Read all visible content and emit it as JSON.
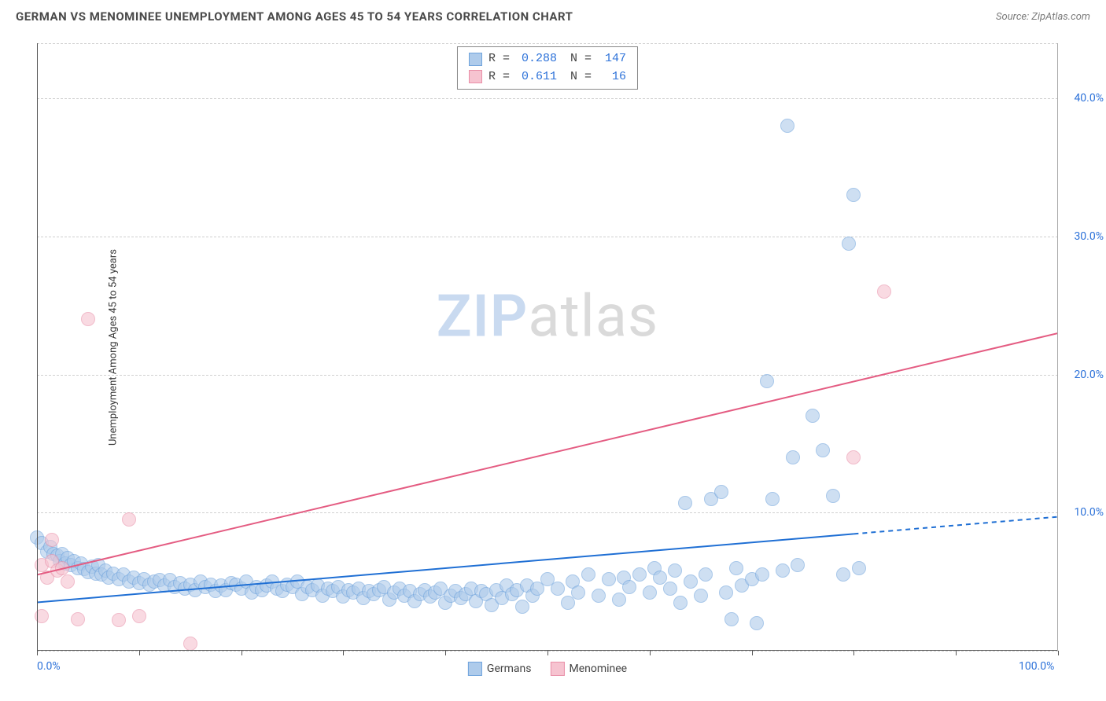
{
  "header": {
    "title": "GERMAN VS MENOMINEE UNEMPLOYMENT AMONG AGES 45 TO 54 YEARS CORRELATION CHART",
    "source": "Source: ZipAtlas.com"
  },
  "chart": {
    "type": "scatter",
    "y_axis_label": "Unemployment Among Ages 45 to 54 years",
    "xlim": [
      0,
      100
    ],
    "ylim": [
      0,
      44
    ],
    "x_ticks": [
      0,
      10,
      20,
      30,
      40,
      50,
      60,
      70,
      80,
      90,
      100
    ],
    "x_tick_labels_shown": {
      "0": "0.0%",
      "100": "100.0%"
    },
    "y_ticks": [
      10,
      20,
      30,
      40
    ],
    "y_tick_labels": {
      "10": "10.0%",
      "20": "20.0%",
      "30": "30.0%",
      "40": "40.0%"
    },
    "grid_y": [
      0,
      10,
      20,
      30,
      40,
      44
    ],
    "background_color": "#ffffff",
    "grid_color": "#d0d0d0",
    "watermark": {
      "part1": "ZIP",
      "part2": "atlas"
    },
    "series": [
      {
        "name": "Germans",
        "fill": "#aecbeb",
        "stroke": "#6fa3dc",
        "marker_radius": 9,
        "fill_opacity": 0.6,
        "regression": {
          "x1": 0,
          "y1": 3.5,
          "x2": 100,
          "y2": 9.7,
          "solid_until_x": 80,
          "color": "#1f6fd4",
          "width": 2
        },
        "stats": {
          "R": "0.288",
          "N": "147"
        },
        "points": [
          [
            0,
            8.2
          ],
          [
            0.5,
            7.8
          ],
          [
            1,
            7.2
          ],
          [
            1.3,
            7.5
          ],
          [
            1.6,
            7.0
          ],
          [
            2,
            6.9
          ],
          [
            2.2,
            6.5
          ],
          [
            2.5,
            7.0
          ],
          [
            2.8,
            6.3
          ],
          [
            3,
            6.7
          ],
          [
            3.3,
            6.2
          ],
          [
            3.6,
            6.5
          ],
          [
            4,
            6.0
          ],
          [
            4.3,
            6.3
          ],
          [
            4.6,
            5.9
          ],
          [
            5,
            5.7
          ],
          [
            5.4,
            6.1
          ],
          [
            5.8,
            5.6
          ],
          [
            6,
            6.2
          ],
          [
            6.3,
            5.5
          ],
          [
            6.7,
            5.8
          ],
          [
            7,
            5.3
          ],
          [
            7.5,
            5.6
          ],
          [
            8,
            5.2
          ],
          [
            8.5,
            5.5
          ],
          [
            9,
            5.0
          ],
          [
            9.5,
            5.3
          ],
          [
            10,
            4.9
          ],
          [
            10.5,
            5.2
          ],
          [
            11,
            4.8
          ],
          [
            11.5,
            5.0
          ],
          [
            12,
            5.1
          ],
          [
            12.5,
            4.7
          ],
          [
            13,
            5.1
          ],
          [
            13.5,
            4.6
          ],
          [
            14,
            4.9
          ],
          [
            14.5,
            4.5
          ],
          [
            15,
            4.8
          ],
          [
            15.5,
            4.4
          ],
          [
            16,
            5.0
          ],
          [
            16.5,
            4.6
          ],
          [
            17,
            4.8
          ],
          [
            17.5,
            4.3
          ],
          [
            18,
            4.7
          ],
          [
            18.5,
            4.4
          ],
          [
            19,
            4.9
          ],
          [
            19.5,
            4.8
          ],
          [
            20,
            4.5
          ],
          [
            20.5,
            5.0
          ],
          [
            21,
            4.2
          ],
          [
            21.5,
            4.6
          ],
          [
            22,
            4.4
          ],
          [
            22.5,
            4.7
          ],
          [
            23,
            5.0
          ],
          [
            23.5,
            4.5
          ],
          [
            24,
            4.3
          ],
          [
            24.5,
            4.8
          ],
          [
            25,
            4.6
          ],
          [
            25.5,
            5.0
          ],
          [
            26,
            4.1
          ],
          [
            26.5,
            4.6
          ],
          [
            27,
            4.4
          ],
          [
            27.5,
            4.7
          ],
          [
            28,
            4.0
          ],
          [
            28.5,
            4.5
          ],
          [
            29,
            4.3
          ],
          [
            29.5,
            4.6
          ],
          [
            30,
            3.9
          ],
          [
            30.5,
            4.4
          ],
          [
            31,
            4.2
          ],
          [
            31.5,
            4.5
          ],
          [
            32,
            3.8
          ],
          [
            32.5,
            4.3
          ],
          [
            33,
            4.1
          ],
          [
            33.5,
            4.4
          ],
          [
            34,
            4.6
          ],
          [
            34.5,
            3.7
          ],
          [
            35,
            4.2
          ],
          [
            35.5,
            4.5
          ],
          [
            36,
            4.0
          ],
          [
            36.5,
            4.3
          ],
          [
            37,
            3.6
          ],
          [
            37.5,
            4.1
          ],
          [
            38,
            4.4
          ],
          [
            38.5,
            3.9
          ],
          [
            39,
            4.2
          ],
          [
            39.5,
            4.5
          ],
          [
            40,
            3.5
          ],
          [
            40.5,
            4.0
          ],
          [
            41,
            4.3
          ],
          [
            41.5,
            3.8
          ],
          [
            42,
            4.1
          ],
          [
            42.5,
            4.5
          ],
          [
            43,
            3.6
          ],
          [
            43.5,
            4.3
          ],
          [
            44,
            4.1
          ],
          [
            44.5,
            3.3
          ],
          [
            45,
            4.4
          ],
          [
            45.5,
            3.8
          ],
          [
            46,
            4.7
          ],
          [
            46.5,
            4.1
          ],
          [
            47,
            4.4
          ],
          [
            47.5,
            3.2
          ],
          [
            48,
            4.7
          ],
          [
            48.5,
            4.0
          ],
          [
            49,
            4.5
          ],
          [
            50,
            5.2
          ],
          [
            51,
            4.5
          ],
          [
            52,
            3.5
          ],
          [
            52.5,
            5.0
          ],
          [
            53,
            4.2
          ],
          [
            54,
            5.5
          ],
          [
            55,
            4.0
          ],
          [
            56,
            5.2
          ],
          [
            57,
            3.7
          ],
          [
            57.5,
            5.3
          ],
          [
            58,
            4.6
          ],
          [
            59,
            5.5
          ],
          [
            60,
            4.2
          ],
          [
            60.5,
            6.0
          ],
          [
            61,
            5.3
          ],
          [
            62,
            4.5
          ],
          [
            62.5,
            5.8
          ],
          [
            63,
            3.5
          ],
          [
            63.5,
            10.7
          ],
          [
            64,
            5.0
          ],
          [
            65,
            4.0
          ],
          [
            65.5,
            5.5
          ],
          [
            66,
            11.0
          ],
          [
            67,
            11.5
          ],
          [
            67.5,
            4.2
          ],
          [
            68,
            2.3
          ],
          [
            68.5,
            6.0
          ],
          [
            69,
            4.7
          ],
          [
            70,
            5.2
          ],
          [
            70.5,
            2.0
          ],
          [
            71,
            5.5
          ],
          [
            71.5,
            19.5
          ],
          [
            72,
            11.0
          ],
          [
            73,
            5.8
          ],
          [
            73.5,
            38.0
          ],
          [
            74,
            14.0
          ],
          [
            74.5,
            6.2
          ],
          [
            76,
            17.0
          ],
          [
            77,
            14.5
          ],
          [
            78,
            11.2
          ],
          [
            79,
            5.5
          ],
          [
            79.5,
            29.5
          ],
          [
            80,
            33.0
          ],
          [
            80.5,
            6.0
          ]
        ]
      },
      {
        "name": "Menominee",
        "fill": "#f6c3d0",
        "stroke": "#e98fa8",
        "marker_radius": 9,
        "fill_opacity": 0.6,
        "regression": {
          "x1": 0,
          "y1": 5.5,
          "x2": 100,
          "y2": 23.0,
          "solid_until_x": 100,
          "color": "#e45c82",
          "width": 2
        },
        "stats": {
          "R": "0.611",
          "N": "16"
        },
        "points": [
          [
            0.5,
            6.2
          ],
          [
            1,
            5.3
          ],
          [
            1.5,
            6.5
          ],
          [
            2,
            5.8
          ],
          [
            2.5,
            6.0
          ],
          [
            3,
            5.0
          ],
          [
            1.5,
            8.0
          ],
          [
            0.5,
            2.5
          ],
          [
            4,
            2.3
          ],
          [
            5,
            24.0
          ],
          [
            8,
            2.2
          ],
          [
            9,
            9.5
          ],
          [
            10,
            2.5
          ],
          [
            15,
            0.5
          ],
          [
            80,
            14.0
          ],
          [
            83,
            26.0
          ]
        ]
      }
    ],
    "bottom_legend": [
      {
        "label": "Germans",
        "fill": "#aecbeb",
        "stroke": "#6fa3dc"
      },
      {
        "label": "Menominee",
        "fill": "#f6c3d0",
        "stroke": "#e98fa8"
      }
    ]
  }
}
